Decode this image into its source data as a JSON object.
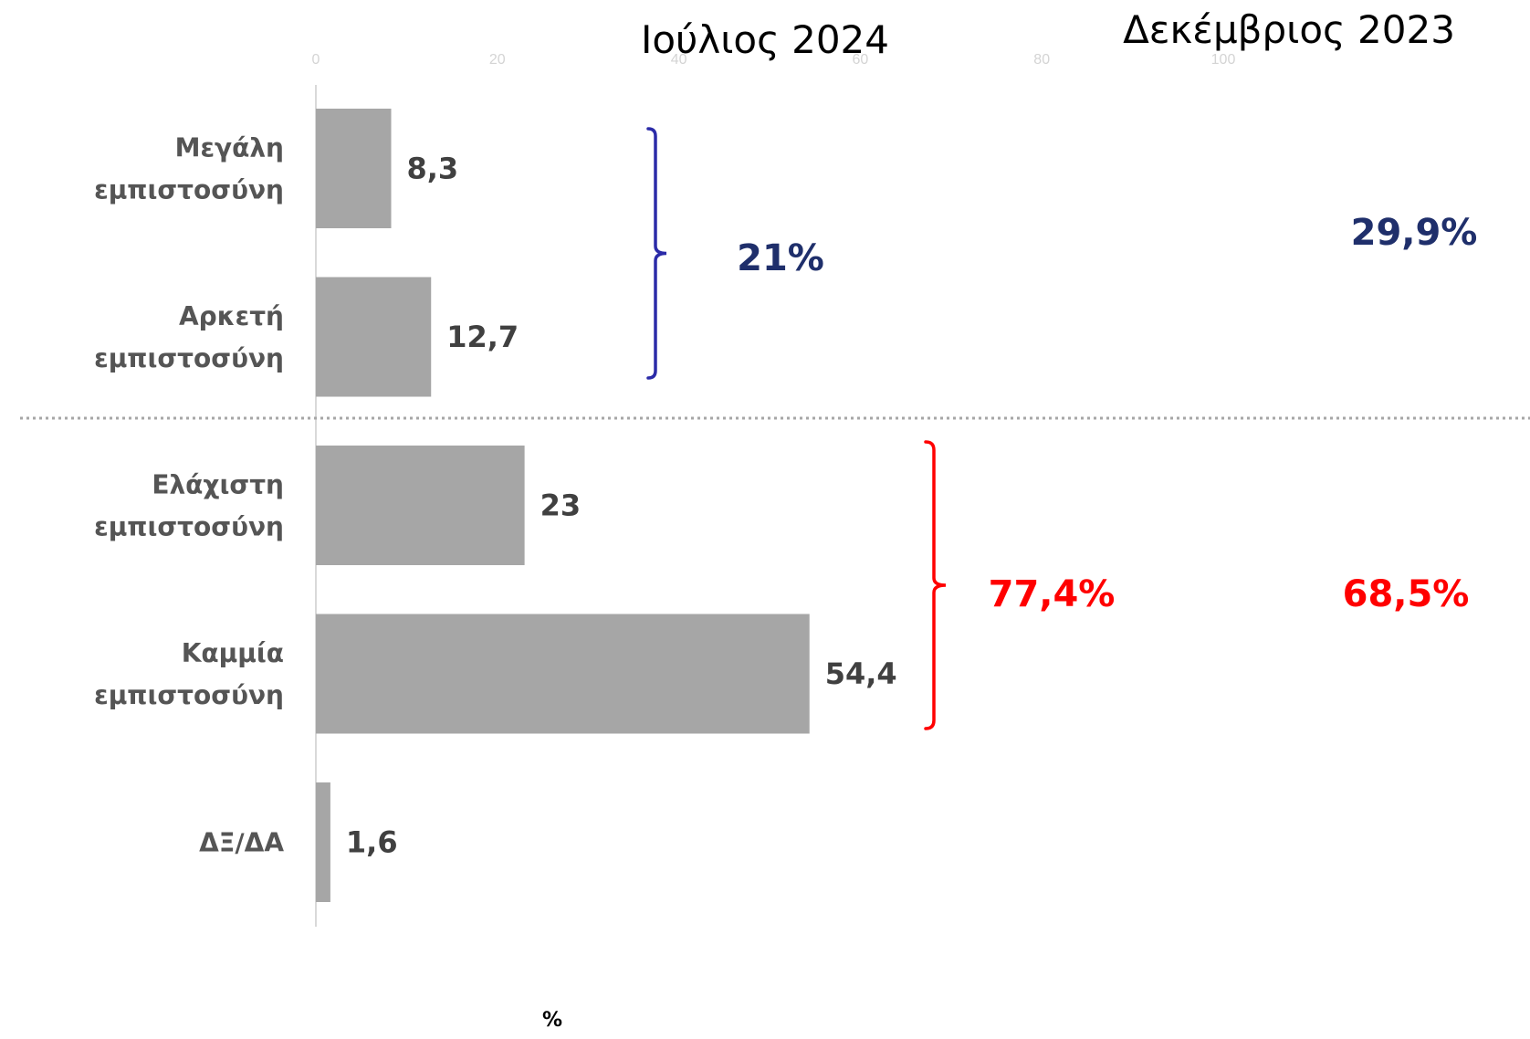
{
  "titles": {
    "current": "Ιούλιος 2024",
    "previous": "Δεκέμβριος 2023"
  },
  "chart_data": {
    "type": "bar",
    "orientation": "horizontal",
    "categories": [
      [
        "Μεγάλη",
        "εμπιστοσύνη"
      ],
      [
        "Αρκετή",
        "εμπιστοσύνη"
      ],
      [
        "Ελάχιστη",
        "εμπιστοσύνη"
      ],
      [
        "Καμμία",
        "εμπιστοσύνη"
      ],
      [
        "ΔΞ/ΔΑ"
      ]
    ],
    "values": [
      8.3,
      12.7,
      23,
      54.4,
      1.6
    ],
    "value_labels": [
      "8,3",
      "12,7",
      "23",
      "54,4",
      "1,6"
    ],
    "xlim": [
      0,
      100
    ],
    "xticks": [
      "0",
      "20",
      "40",
      "60",
      "80",
      "100"
    ],
    "xlabel": "%",
    "bar_color": "#a6a6a6",
    "grid": false
  },
  "groups": {
    "trust": {
      "current": "21%",
      "previous": "29,9%",
      "color": "#1f2f6b",
      "brace_color": "#2b2ba8"
    },
    "distrust": {
      "current": "77,4%",
      "previous": "68,5%",
      "color": "#ff0000",
      "brace_color": "#ff0000"
    }
  }
}
